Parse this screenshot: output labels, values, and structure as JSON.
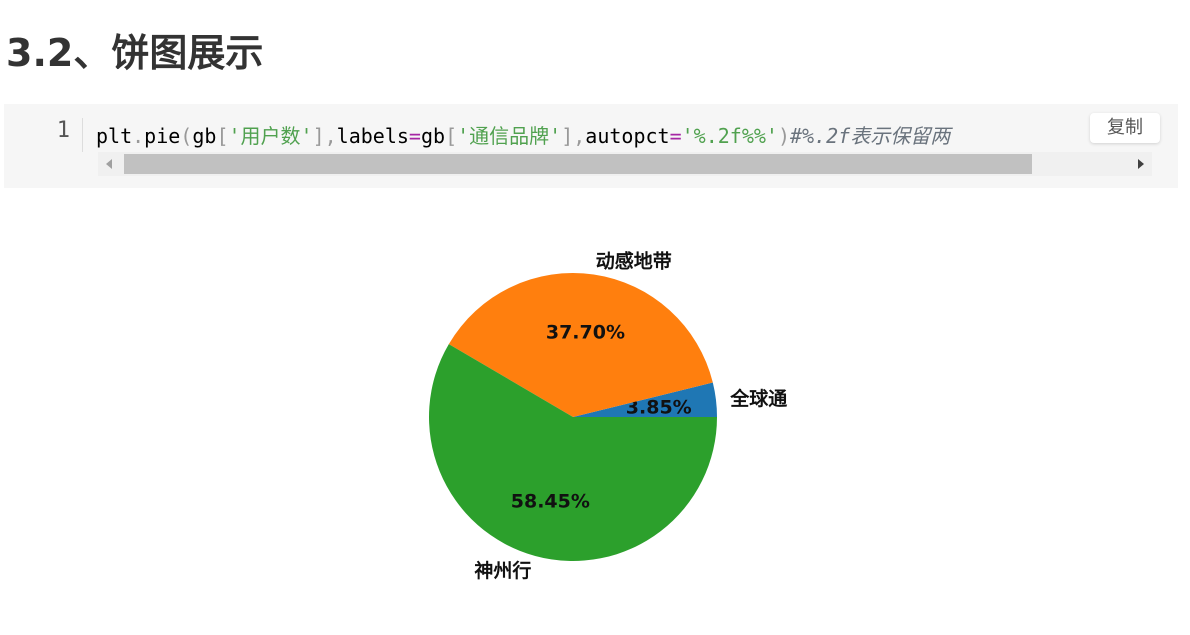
{
  "heading": "3.2、饼图展示",
  "code": {
    "line_number": "1",
    "tokens": [
      {
        "t": "plt",
        "c": ""
      },
      {
        "t": ".",
        "c": "tk-punc"
      },
      {
        "t": "pie",
        "c": ""
      },
      {
        "t": "(",
        "c": "tk-punc"
      },
      {
        "t": "gb",
        "c": ""
      },
      {
        "t": "[",
        "c": "tk-punc"
      },
      {
        "t": "'用户数'",
        "c": "tk-str"
      },
      {
        "t": "],",
        "c": "tk-punc"
      },
      {
        "t": "labels",
        "c": ""
      },
      {
        "t": "=",
        "c": "tk-op"
      },
      {
        "t": "gb",
        "c": ""
      },
      {
        "t": "[",
        "c": "tk-punc"
      },
      {
        "t": "'通信品牌'",
        "c": "tk-str"
      },
      {
        "t": "],",
        "c": "tk-punc"
      },
      {
        "t": "autopct",
        "c": ""
      },
      {
        "t": "=",
        "c": "tk-op"
      },
      {
        "t": "'%.2f%%'",
        "c": "tk-str"
      },
      {
        "t": ")",
        "c": "tk-punc"
      },
      {
        "t": "#%.2f表示保留两",
        "c": "tk-cmt"
      }
    ],
    "copy_label": "复制"
  },
  "colors": {
    "blue": "#1f77b4",
    "orange": "#ff7f0e",
    "green": "#2ca02c"
  },
  "chart_data": {
    "type": "pie",
    "start_angle_deg": 0,
    "direction": "counterclockwise",
    "slices": [
      {
        "label": "全球通",
        "value": 3.85,
        "pct_text": "3.85%",
        "color": "#1f77b4"
      },
      {
        "label": "动感地带",
        "value": 37.7,
        "pct_text": "37.70%",
        "color": "#ff7f0e"
      },
      {
        "label": "神州行",
        "value": 58.45,
        "pct_text": "58.45%",
        "color": "#2ca02c"
      }
    ]
  }
}
